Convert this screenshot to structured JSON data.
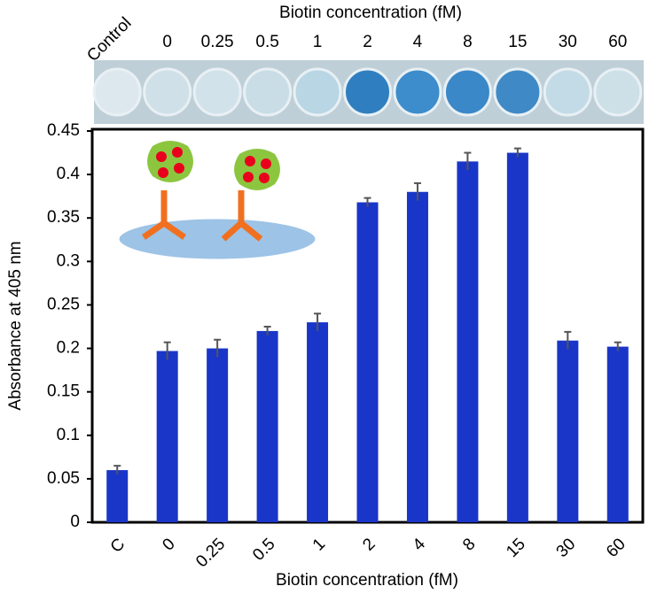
{
  "chart_data": {
    "type": "bar",
    "plate_title": "Biotin concentration (fM)",
    "plate_labels": [
      "Control",
      "0",
      "0.25",
      "0.5",
      "1",
      "2",
      "4",
      "8",
      "15",
      "30",
      "60"
    ],
    "x_label": "Biotin concentration (fM)",
    "y_label": "Absorbance at 405 nm",
    "categories": [
      "C",
      "0",
      "0.25",
      "0.5",
      "1",
      "2",
      "4",
      "8",
      "15",
      "30",
      "60"
    ],
    "values": [
      0.06,
      0.197,
      0.2,
      0.22,
      0.23,
      0.368,
      0.38,
      0.415,
      0.425,
      0.209,
      0.202
    ],
    "errors": [
      0.005,
      0.01,
      0.01,
      0.005,
      0.01,
      0.005,
      0.01,
      0.01,
      0.005,
      0.01,
      0.005
    ],
    "color": "#1a36c8",
    "error_color": "#555555",
    "ylim": [
      0,
      0.45
    ],
    "yticks": [
      0,
      0.05,
      0.1,
      0.15,
      0.2,
      0.25,
      0.3,
      0.35,
      0.4,
      0.45
    ]
  }
}
